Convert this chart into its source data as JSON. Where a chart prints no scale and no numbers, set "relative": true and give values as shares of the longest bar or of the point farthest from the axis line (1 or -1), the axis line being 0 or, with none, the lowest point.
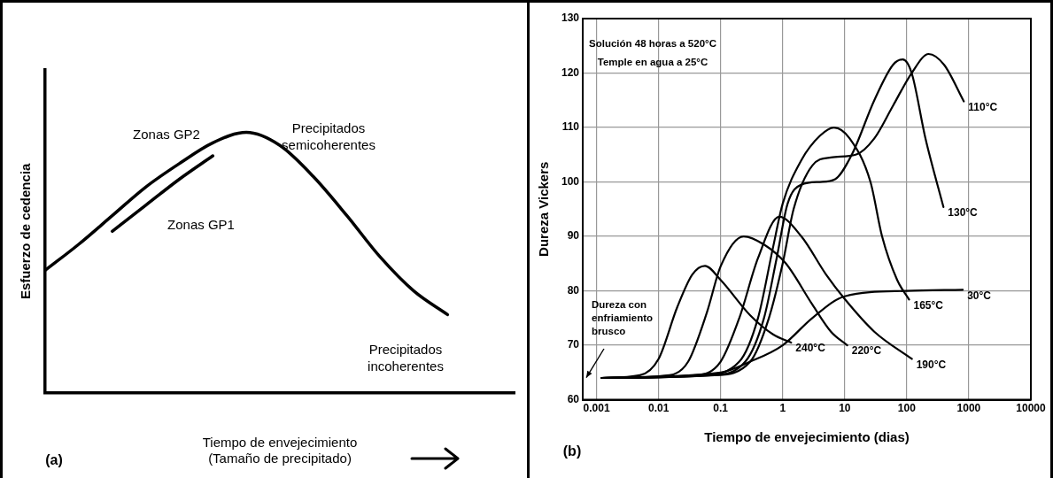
{
  "chart_data": [
    {
      "type": "line",
      "relative": true,
      "xlabel": "Tiempo de envejecimiento\n(Tamaño de precipitado)",
      "ylabel": "Esfuerzo de cedencia",
      "categories": [
        null,
        null,
        null,
        null,
        null,
        null,
        null,
        null,
        null,
        null,
        null,
        null,
        null,
        null,
        null
      ],
      "series": [
        {
          "color": "#000000",
          "values": [
            0.47,
            0.57,
            0.68,
            0.79,
            0.88,
            0.96,
            1.0,
            0.95,
            0.83,
            0.68,
            0.52,
            0.39,
            0.3,
            null,
            null
          ]
        },
        {
          "color": "#000000",
          "values": [
            null,
            null,
            0.62,
            0.72,
            0.82,
            0.91,
            null,
            null,
            null,
            null,
            null,
            null,
            null,
            null,
            null
          ]
        }
      ],
      "annotations": [
        "Zonas GP2",
        "Precipitados semicoherentes",
        "Zonas GP1",
        "Precipitados incoherentes",
        "(a)"
      ],
      "grid": false,
      "legend": false,
      "marker": "none",
      "line_style": "solid"
    },
    {
      "type": "line",
      "xlabel": "Tiempo de envejecimiento (dias)",
      "ylabel": "Dureza Vickers",
      "log": "x",
      "xlim": [
        0.0006,
        10000
      ],
      "xticks": [
        0.001,
        0.01,
        0.1,
        1,
        10,
        100,
        1000,
        10000
      ],
      "ylim": [
        60,
        130
      ],
      "yticks": [
        60,
        70,
        80,
        90,
        100,
        110,
        120,
        130
      ],
      "series": [
        {
          "name": "240°C",
          "color": "#000000",
          "x": [
            0.0012,
            0.005,
            0.01,
            0.02,
            0.035,
            0.056,
            0.1,
            0.3,
            0.7,
            1.37
          ],
          "values": [
            64,
            64.5,
            67.5,
            77,
            83,
            84.6,
            82,
            75.5,
            72,
            70.5
          ]
        },
        {
          "name": "220°C",
          "color": "#000000",
          "x": [
            0.0012,
            0.015,
            0.03,
            0.06,
            0.1,
            0.235,
            0.5,
            1.13,
            3,
            6,
            11
          ],
          "values": [
            64,
            64.5,
            67,
            76,
            84.5,
            90,
            88.5,
            85,
            77.5,
            72.5,
            70
          ]
        },
        {
          "name": "190°C",
          "color": "#000000",
          "x": [
            0.0012,
            0.04,
            0.1,
            0.2,
            0.4,
            0.88,
            2,
            5,
            10,
            30,
            121
          ],
          "values": [
            64,
            64.5,
            67,
            75,
            86,
            93.6,
            90,
            83,
            78.5,
            72.5,
            67.5
          ]
        },
        {
          "name": "165°C",
          "color": "#000000",
          "x": [
            0.0012,
            0.05,
            0.2,
            0.4,
            0.7,
            1,
            2,
            4,
            6.7,
            12,
            26,
            40,
            70,
            109
          ],
          "values": [
            64,
            64.5,
            67,
            75,
            88,
            96,
            104,
            108.5,
            110,
            108,
            100,
            90,
            82,
            78.4
          ]
        },
        {
          "name": "130°C",
          "color": "#000000",
          "x": [
            0.0012,
            0.07,
            0.25,
            0.5,
            0.8,
            1.2,
            2,
            4,
            7,
            13,
            30,
            60,
            86,
            120,
            200,
            390
          ],
          "values": [
            64,
            64.5,
            67,
            75,
            86,
            96,
            99.5,
            100,
            100.5,
            105,
            115,
            121.5,
            122.5,
            120,
            108,
            95.4
          ]
        },
        {
          "name": "110°C",
          "color": "#000000",
          "x": [
            0.0012,
            0.08,
            0.3,
            0.6,
            1,
            1.5,
            3,
            6,
            15,
            30,
            60,
            120,
            225,
            400,
            830
          ],
          "values": [
            64,
            64.5,
            67,
            75,
            85,
            95,
            103,
            104.5,
            105,
            108,
            114,
            120,
            123.5,
            121.5,
            114.8
          ]
        },
        {
          "name": "30°C",
          "color": "#000000",
          "x": [
            0.0012,
            0.1,
            0.3,
            1,
            3,
            10,
            100,
            800
          ],
          "values": [
            64,
            65,
            67,
            70,
            75,
            79,
            80,
            80.2
          ]
        }
      ],
      "annotations": [
        "Solución 48 horas a 520°C",
        "Temple en agua a 25°C",
        "Dureza con enfriamiento brusco",
        "(b)"
      ],
      "grid": true,
      "legend": false,
      "marker": "none",
      "line_style": "solid"
    }
  ]
}
